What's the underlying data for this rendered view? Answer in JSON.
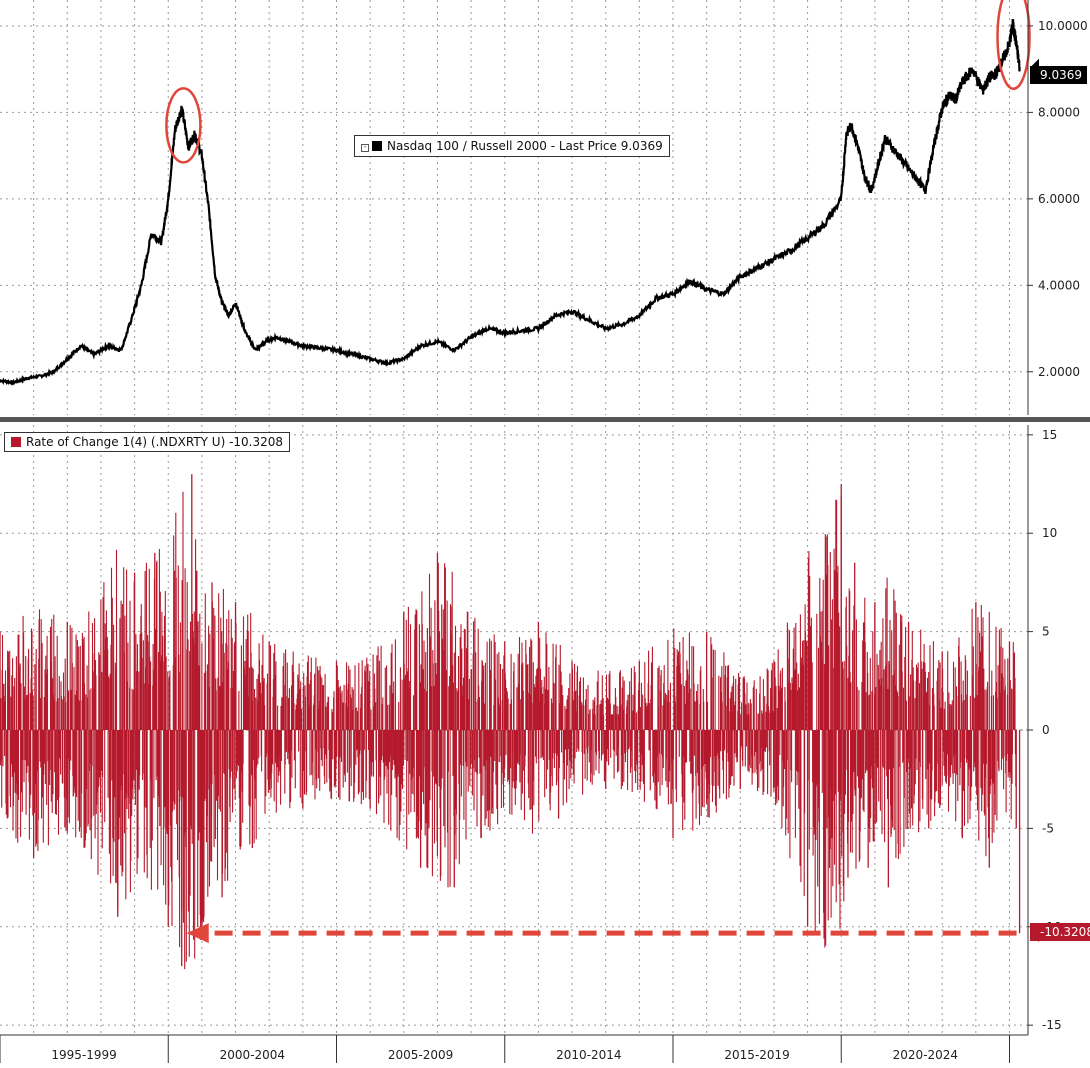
{
  "chart_data": [
    {
      "type": "line",
      "title": "",
      "legend": {
        "label": "Nasdaq 100 / Russell 2000 - Last Price 9.0369",
        "placement": "top-center"
      },
      "last_value_label": "9.0369",
      "ylim": [
        1.0,
        10.6
      ],
      "yticks": [
        2,
        4,
        6,
        8,
        10
      ],
      "ytick_labels": [
        "2.0000",
        "4.0000",
        "6.0000",
        "8.0000",
        "10.0000"
      ],
      "grid": true,
      "series": [
        {
          "name": "Nasdaq 100 / Russell 2000",
          "color": "#000000",
          "x": [
            1995.0,
            1995.4,
            1995.8,
            1996.2,
            1996.6,
            1997.0,
            1997.4,
            1997.8,
            1998.2,
            1998.6,
            1998.9,
            1999.2,
            1999.5,
            1999.8,
            2000.0,
            2000.2,
            2000.4,
            2000.6,
            2000.8,
            2001.0,
            2001.2,
            2001.4,
            2001.6,
            2001.8,
            2002.0,
            2002.3,
            2002.6,
            2002.9,
            2003.2,
            2003.6,
            2004.0,
            2004.5,
            2005.0,
            2005.5,
            2006.0,
            2006.5,
            2007.0,
            2007.5,
            2008.0,
            2008.5,
            2009.0,
            2009.5,
            2010.0,
            2010.5,
            2011.0,
            2011.5,
            2012.0,
            2012.5,
            2013.0,
            2013.5,
            2014.0,
            2014.5,
            2015.0,
            2015.5,
            2016.0,
            2016.5,
            2017.0,
            2017.5,
            2018.0,
            2018.5,
            2019.0,
            2019.5,
            2020.0,
            2020.15,
            2020.3,
            2020.5,
            2020.7,
            2020.9,
            2021.1,
            2021.3,
            2021.6,
            2021.9,
            2022.2,
            2022.5,
            2022.8,
            2023.0,
            2023.2,
            2023.4,
            2023.6,
            2023.9,
            2024.2,
            2024.4,
            2024.6,
            2024.8,
            2025.0,
            2025.1,
            2025.2,
            2025.3
          ],
          "values": [
            1.8,
            1.75,
            1.85,
            1.9,
            2.0,
            2.3,
            2.6,
            2.4,
            2.6,
            2.5,
            3.2,
            4.0,
            5.2,
            5.0,
            6.0,
            7.6,
            8.1,
            7.2,
            7.5,
            7.0,
            5.8,
            4.2,
            3.6,
            3.3,
            3.6,
            2.9,
            2.5,
            2.7,
            2.8,
            2.7,
            2.6,
            2.55,
            2.5,
            2.4,
            2.3,
            2.2,
            2.3,
            2.6,
            2.7,
            2.5,
            2.8,
            3.0,
            2.9,
            2.95,
            3.0,
            3.3,
            3.4,
            3.2,
            3.0,
            3.1,
            3.3,
            3.7,
            3.8,
            4.1,
            3.9,
            3.8,
            4.2,
            4.4,
            4.6,
            4.8,
            5.1,
            5.4,
            6.0,
            7.5,
            7.7,
            7.2,
            6.5,
            6.2,
            6.8,
            7.4,
            7.1,
            6.8,
            6.5,
            6.2,
            7.4,
            8.1,
            8.4,
            8.3,
            8.7,
            9.0,
            8.5,
            8.8,
            8.9,
            9.2,
            9.6,
            10.05,
            9.6,
            9.04
          ]
        }
      ]
    },
    {
      "type": "bar",
      "title": "",
      "legend": {
        "label": "Rate of Change 1(4) (.NDXRTY U) -10.3208",
        "placement": "top-left"
      },
      "last_value_label": "-10.3208",
      "ylim": [
        -15.5,
        15.5
      ],
      "yticks": [
        -15,
        -10,
        -5,
        0,
        5,
        10,
        15
      ],
      "ytick_labels": [
        "-15",
        "-10",
        "-5",
        "0",
        "5",
        "10",
        "15"
      ],
      "grid": true,
      "annotation": "dashed arrow from latest value -10.3208 back to the 2000-2001 low",
      "series": [
        {
          "name": "Rate of Change 1(4) (.NDXRTY U)",
          "color": "#b5192b",
          "x": [
            1995.0,
            1996.0,
            1997.0,
            1997.5,
            1998.5,
            1999.0,
            1999.6,
            2000.0,
            2000.4,
            2000.7,
            2001.0,
            2001.3,
            2001.6,
            2002.0,
            2002.5,
            2003.0,
            2004.0,
            2005.0,
            2006.0,
            2007.0,
            2007.5,
            2008.0,
            2008.5,
            2008.9,
            2009.3,
            2010.0,
            2011.0,
            2011.6,
            2012.0,
            2013.0,
            2014.0,
            2015.0,
            2016.0,
            2017.0,
            2018.0,
            2019.0,
            2020.0,
            2020.2,
            2020.4,
            2020.8,
            2021.0,
            2021.4,
            2022.0,
            2022.6,
            2023.0,
            2023.6,
            2024.0,
            2024.4,
            2025.0,
            2025.2,
            2025.3
          ],
          "values": [
            5.0,
            -6.5,
            5.5,
            -6.0,
            -9.5,
            8.0,
            9.0,
            -10.0,
            -12.0,
            13.0,
            -10.5,
            7.5,
            -8.5,
            6.5,
            -6.0,
            4.5,
            -4.0,
            3.5,
            -4.0,
            6.0,
            -7.0,
            9.0,
            -8.0,
            6.0,
            -5.5,
            4.5,
            5.5,
            -4.5,
            3.5,
            -3.0,
            3.5,
            -5.5,
            5.0,
            -3.0,
            3.5,
            -10.0,
            12.5,
            -7.5,
            8.5,
            -7.0,
            6.5,
            -8.0,
            5.5,
            -5.0,
            4.0,
            -5.5,
            6.5,
            -7.0,
            4.5,
            -5.0,
            -10.3208
          ]
        }
      ]
    }
  ],
  "x_axis": {
    "range": [
      1995.0,
      2025.55
    ],
    "period_labels": [
      "1995-1999",
      "2000-2004",
      "2005-2009",
      "2010-2014",
      "2015-2019",
      "2020-2024"
    ],
    "period_starts": [
      1995,
      2000,
      2005,
      2010,
      2015,
      2020,
      2025
    ]
  },
  "colors": {
    "price": "#000000",
    "roc": "#b5192b",
    "highlight": "#e0473a",
    "badge": "#000000"
  }
}
